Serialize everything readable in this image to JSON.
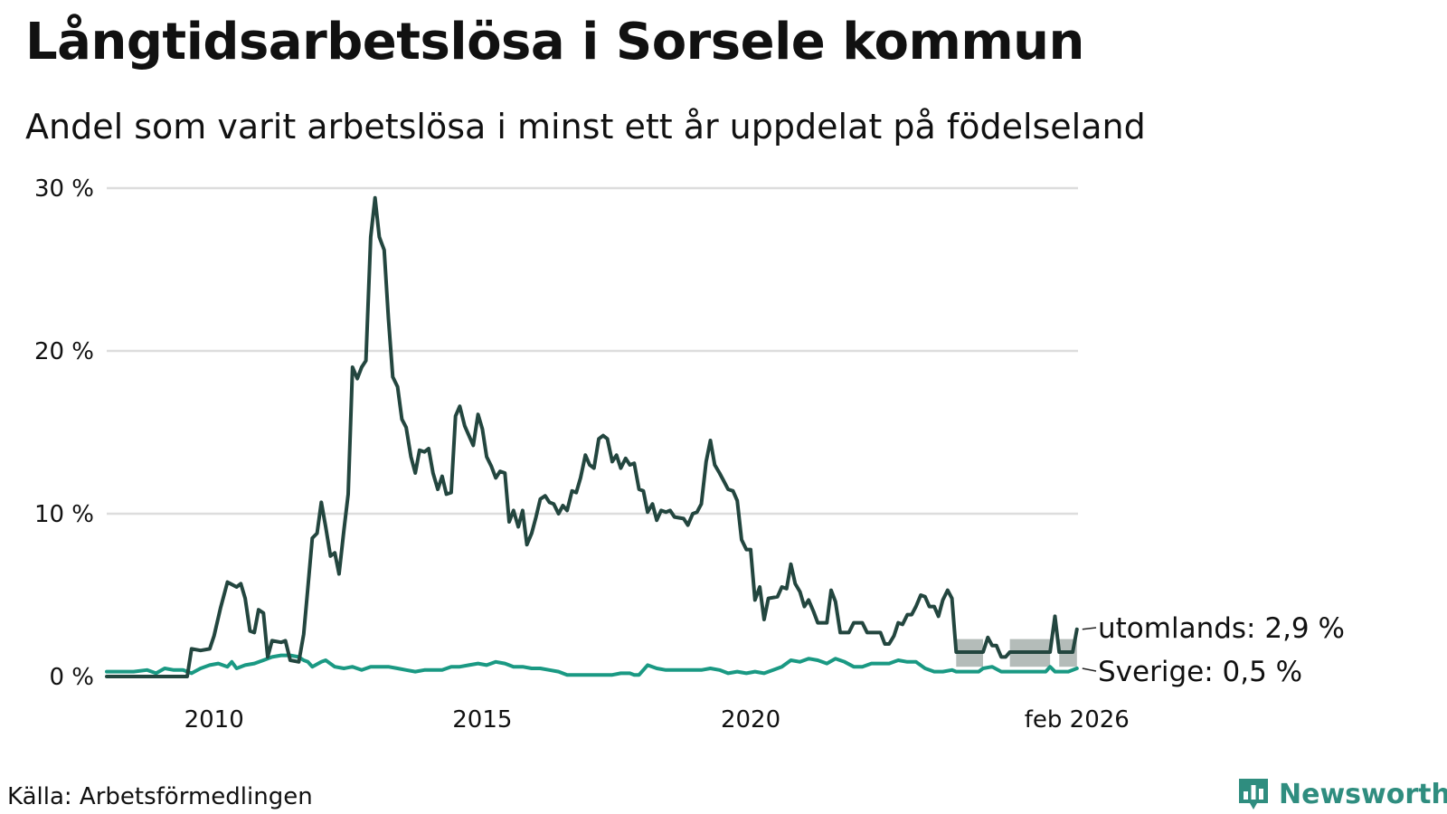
{
  "title": "Långtidsarbetslösa i Sorsele kommun",
  "subtitle": "Andel som varit arbetslösa i minst ett år uppdelat på födelseland",
  "source": "Källa: Arbetsförmedlingen",
  "brand": "Newsworthy",
  "colors": {
    "utomlands": "#23463f",
    "sverige": "#1a9983",
    "band": "#b4bcb9",
    "grid": "#dddddd",
    "brand": "#2f8d7f"
  },
  "chart_data": {
    "type": "line",
    "title": "Långtidsarbetslösa i Sorsele kommun",
    "xlabel": "",
    "ylabel": "",
    "xlim": [
      2008.0,
      2026.1
    ],
    "ylim": [
      0,
      30
    ],
    "grid": true,
    "y_ticks": [
      {
        "value": 0,
        "label": "0 %"
      },
      {
        "value": 10,
        "label": "10 %"
      },
      {
        "value": 20,
        "label": "20 %"
      },
      {
        "value": 30,
        "label": "30 %"
      }
    ],
    "x_ticks": [
      {
        "value": 2010,
        "label": "2010"
      },
      {
        "value": 2015,
        "label": "2015"
      },
      {
        "value": 2020,
        "label": "2020"
      },
      {
        "value": 2026.08,
        "label": "feb 2026"
      }
    ],
    "series": [
      {
        "name": "utomlands",
        "end_label": "utomlands: 2,9 %",
        "points": [
          [
            2008.0,
            0
          ],
          [
            2009.5,
            0
          ],
          [
            2009.58,
            1.7
          ],
          [
            2009.75,
            1.6
          ],
          [
            2009.92,
            1.7
          ],
          [
            2010.0,
            2.5
          ],
          [
            2010.12,
            4.2
          ],
          [
            2010.25,
            5.8
          ],
          [
            2010.42,
            5.5
          ],
          [
            2010.5,
            5.7
          ],
          [
            2010.58,
            4.8
          ],
          [
            2010.67,
            2.8
          ],
          [
            2010.75,
            2.7
          ],
          [
            2010.83,
            4.1
          ],
          [
            2010.92,
            3.9
          ],
          [
            2011.0,
            1.2
          ],
          [
            2011.08,
            2.2
          ],
          [
            2011.25,
            2.1
          ],
          [
            2011.33,
            2.2
          ],
          [
            2011.42,
            1.0
          ],
          [
            2011.58,
            0.9
          ],
          [
            2011.67,
            2.6
          ],
          [
            2011.75,
            5.5
          ],
          [
            2011.83,
            8.5
          ],
          [
            2011.92,
            8.8
          ],
          [
            2012.0,
            10.7
          ],
          [
            2012.08,
            9.2
          ],
          [
            2012.17,
            7.4
          ],
          [
            2012.25,
            7.6
          ],
          [
            2012.33,
            6.3
          ],
          [
            2012.42,
            9.0
          ],
          [
            2012.5,
            11.2
          ],
          [
            2012.58,
            19.0
          ],
          [
            2012.67,
            18.3
          ],
          [
            2012.75,
            19.0
          ],
          [
            2012.83,
            19.4
          ],
          [
            2012.92,
            27.0
          ],
          [
            2013.0,
            29.4
          ],
          [
            2013.08,
            27.0
          ],
          [
            2013.17,
            26.2
          ],
          [
            2013.25,
            22.0
          ],
          [
            2013.33,
            18.4
          ],
          [
            2013.42,
            17.8
          ],
          [
            2013.5,
            15.8
          ],
          [
            2013.58,
            15.3
          ],
          [
            2013.67,
            13.5
          ],
          [
            2013.75,
            12.5
          ],
          [
            2013.83,
            13.9
          ],
          [
            2013.92,
            13.8
          ],
          [
            2014.0,
            14.0
          ],
          [
            2014.08,
            12.5
          ],
          [
            2014.17,
            11.5
          ],
          [
            2014.25,
            12.3
          ],
          [
            2014.33,
            11.2
          ],
          [
            2014.42,
            11.3
          ],
          [
            2014.5,
            16.0
          ],
          [
            2014.58,
            16.6
          ],
          [
            2014.67,
            15.4
          ],
          [
            2014.75,
            14.8
          ],
          [
            2014.83,
            14.2
          ],
          [
            2014.92,
            16.1
          ],
          [
            2015.0,
            15.2
          ],
          [
            2015.08,
            13.5
          ],
          [
            2015.17,
            12.9
          ],
          [
            2015.25,
            12.2
          ],
          [
            2015.33,
            12.6
          ],
          [
            2015.42,
            12.5
          ],
          [
            2015.5,
            9.5
          ],
          [
            2015.58,
            10.2
          ],
          [
            2015.67,
            9.2
          ],
          [
            2015.75,
            10.2
          ],
          [
            2015.83,
            8.1
          ],
          [
            2015.92,
            8.8
          ],
          [
            2016.0,
            9.8
          ],
          [
            2016.08,
            10.9
          ],
          [
            2016.17,
            11.1
          ],
          [
            2016.25,
            10.7
          ],
          [
            2016.33,
            10.6
          ],
          [
            2016.42,
            10.0
          ],
          [
            2016.5,
            10.5
          ],
          [
            2016.58,
            10.2
          ],
          [
            2016.67,
            11.4
          ],
          [
            2016.75,
            11.3
          ],
          [
            2016.83,
            12.2
          ],
          [
            2016.92,
            13.6
          ],
          [
            2017.0,
            13.0
          ],
          [
            2017.08,
            12.8
          ],
          [
            2017.17,
            14.6
          ],
          [
            2017.25,
            14.8
          ],
          [
            2017.33,
            14.6
          ],
          [
            2017.42,
            13.2
          ],
          [
            2017.5,
            13.6
          ],
          [
            2017.58,
            12.8
          ],
          [
            2017.67,
            13.4
          ],
          [
            2017.75,
            13.0
          ],
          [
            2017.83,
            13.1
          ],
          [
            2017.92,
            11.5
          ],
          [
            2018.0,
            11.4
          ],
          [
            2018.08,
            10.1
          ],
          [
            2018.17,
            10.6
          ],
          [
            2018.25,
            9.6
          ],
          [
            2018.33,
            10.2
          ],
          [
            2018.42,
            10.1
          ],
          [
            2018.5,
            10.2
          ],
          [
            2018.58,
            9.8
          ],
          [
            2018.75,
            9.7
          ],
          [
            2018.83,
            9.3
          ],
          [
            2018.92,
            10.0
          ],
          [
            2019.0,
            10.1
          ],
          [
            2019.08,
            10.6
          ],
          [
            2019.17,
            13.2
          ],
          [
            2019.25,
            14.5
          ],
          [
            2019.33,
            13.0
          ],
          [
            2019.42,
            12.5
          ],
          [
            2019.5,
            12.0
          ],
          [
            2019.58,
            11.5
          ],
          [
            2019.67,
            11.4
          ],
          [
            2019.75,
            10.8
          ],
          [
            2019.83,
            8.4
          ],
          [
            2019.92,
            7.8
          ],
          [
            2020.0,
            7.8
          ],
          [
            2020.08,
            4.7
          ],
          [
            2020.17,
            5.5
          ],
          [
            2020.25,
            3.5
          ],
          [
            2020.33,
            4.8
          ],
          [
            2020.5,
            4.9
          ],
          [
            2020.58,
            5.5
          ],
          [
            2020.67,
            5.4
          ],
          [
            2020.75,
            6.9
          ],
          [
            2020.83,
            5.7
          ],
          [
            2020.92,
            5.2
          ],
          [
            2021.0,
            4.3
          ],
          [
            2021.08,
            4.7
          ],
          [
            2021.17,
            4.0
          ],
          [
            2021.25,
            3.3
          ],
          [
            2021.42,
            3.3
          ],
          [
            2021.5,
            5.3
          ],
          [
            2021.58,
            4.6
          ],
          [
            2021.67,
            2.7
          ],
          [
            2021.83,
            2.7
          ],
          [
            2021.92,
            3.3
          ],
          [
            2022.08,
            3.3
          ],
          [
            2022.17,
            2.7
          ],
          [
            2022.42,
            2.7
          ],
          [
            2022.5,
            2.0
          ],
          [
            2022.58,
            2.0
          ],
          [
            2022.67,
            2.5
          ],
          [
            2022.75,
            3.3
          ],
          [
            2022.83,
            3.2
          ],
          [
            2022.92,
            3.8
          ],
          [
            2023.0,
            3.8
          ],
          [
            2023.08,
            4.3
          ],
          [
            2023.17,
            5.0
          ],
          [
            2023.25,
            4.9
          ],
          [
            2023.33,
            4.3
          ],
          [
            2023.42,
            4.3
          ],
          [
            2023.5,
            3.7
          ],
          [
            2023.58,
            4.7
          ],
          [
            2023.67,
            5.3
          ],
          [
            2023.75,
            4.8
          ],
          [
            2023.83,
            1.5
          ],
          [
            2024.33,
            1.5
          ],
          [
            2024.42,
            2.4
          ],
          [
            2024.5,
            1.9
          ],
          [
            2024.58,
            1.9
          ],
          [
            2024.67,
            1.2
          ],
          [
            2024.75,
            1.2
          ],
          [
            2024.83,
            1.5
          ],
          [
            2025.58,
            1.5
          ],
          [
            2025.67,
            3.7
          ],
          [
            2025.75,
            1.5
          ],
          [
            2026.0,
            1.5
          ],
          [
            2026.08,
            2.9
          ]
        ],
        "uncertainty_band": [
          {
            "x_start": 2023.83,
            "x_end": 2024.33,
            "low": 0.6,
            "high": 2.3
          },
          {
            "x_start": 2024.83,
            "x_end": 2025.58,
            "low": 0.6,
            "high": 2.3
          },
          {
            "x_start": 2025.75,
            "x_end": 2026.08,
            "low": 0.6,
            "high": 2.3
          }
        ]
      },
      {
        "name": "Sverige",
        "end_label": "Sverige: 0,5 %",
        "points": [
          [
            2008.0,
            0.3
          ],
          [
            2008.5,
            0.3
          ],
          [
            2008.75,
            0.4
          ],
          [
            2008.92,
            0.2
          ],
          [
            2009.08,
            0.5
          ],
          [
            2009.25,
            0.4
          ],
          [
            2009.42,
            0.4
          ],
          [
            2009.58,
            0.2
          ],
          [
            2009.75,
            0.5
          ],
          [
            2009.92,
            0.7
          ],
          [
            2010.08,
            0.8
          ],
          [
            2010.25,
            0.6
          ],
          [
            2010.33,
            0.9
          ],
          [
            2010.42,
            0.5
          ],
          [
            2010.58,
            0.7
          ],
          [
            2010.75,
            0.8
          ],
          [
            2010.92,
            1.0
          ],
          [
            2011.08,
            1.2
          ],
          [
            2011.25,
            1.3
          ],
          [
            2011.42,
            1.3
          ],
          [
            2011.58,
            1.2
          ],
          [
            2011.67,
            1.0
          ],
          [
            2011.75,
            0.9
          ],
          [
            2011.83,
            0.6
          ],
          [
            2012.0,
            0.9
          ],
          [
            2012.08,
            1.0
          ],
          [
            2012.25,
            0.6
          ],
          [
            2012.42,
            0.5
          ],
          [
            2012.58,
            0.6
          ],
          [
            2012.75,
            0.4
          ],
          [
            2012.92,
            0.6
          ],
          [
            2013.08,
            0.6
          ],
          [
            2013.25,
            0.6
          ],
          [
            2013.42,
            0.5
          ],
          [
            2013.58,
            0.4
          ],
          [
            2013.75,
            0.3
          ],
          [
            2013.92,
            0.4
          ],
          [
            2014.08,
            0.4
          ],
          [
            2014.25,
            0.4
          ],
          [
            2014.42,
            0.6
          ],
          [
            2014.58,
            0.6
          ],
          [
            2014.75,
            0.7
          ],
          [
            2014.92,
            0.8
          ],
          [
            2015.08,
            0.7
          ],
          [
            2015.25,
            0.9
          ],
          [
            2015.42,
            0.8
          ],
          [
            2015.58,
            0.6
          ],
          [
            2015.75,
            0.6
          ],
          [
            2015.92,
            0.5
          ],
          [
            2016.08,
            0.5
          ],
          [
            2016.25,
            0.4
          ],
          [
            2016.42,
            0.3
          ],
          [
            2016.58,
            0.1
          ],
          [
            2016.75,
            0.1
          ],
          [
            2016.92,
            0.1
          ],
          [
            2017.08,
            0.1
          ],
          [
            2017.25,
            0.1
          ],
          [
            2017.42,
            0.1
          ],
          [
            2017.58,
            0.2
          ],
          [
            2017.75,
            0.2
          ],
          [
            2017.83,
            0.1
          ],
          [
            2017.92,
            0.1
          ],
          [
            2018.08,
            0.7
          ],
          [
            2018.25,
            0.5
          ],
          [
            2018.42,
            0.4
          ],
          [
            2018.58,
            0.4
          ],
          [
            2018.75,
            0.4
          ],
          [
            2018.92,
            0.4
          ],
          [
            2019.08,
            0.4
          ],
          [
            2019.25,
            0.5
          ],
          [
            2019.42,
            0.4
          ],
          [
            2019.58,
            0.2
          ],
          [
            2019.75,
            0.3
          ],
          [
            2019.92,
            0.2
          ],
          [
            2020.08,
            0.3
          ],
          [
            2020.25,
            0.2
          ],
          [
            2020.42,
            0.4
          ],
          [
            2020.58,
            0.6
          ],
          [
            2020.75,
            1.0
          ],
          [
            2020.92,
            0.9
          ],
          [
            2021.08,
            1.1
          ],
          [
            2021.25,
            1.0
          ],
          [
            2021.42,
            0.8
          ],
          [
            2021.58,
            1.1
          ],
          [
            2021.75,
            0.9
          ],
          [
            2021.92,
            0.6
          ],
          [
            2022.08,
            0.6
          ],
          [
            2022.25,
            0.8
          ],
          [
            2022.42,
            0.8
          ],
          [
            2022.58,
            0.8
          ],
          [
            2022.75,
            1.0
          ],
          [
            2022.92,
            0.9
          ],
          [
            2023.08,
            0.9
          ],
          [
            2023.25,
            0.5
          ],
          [
            2023.42,
            0.3
          ],
          [
            2023.58,
            0.3
          ],
          [
            2023.75,
            0.4
          ],
          [
            2023.83,
            0.3
          ],
          [
            2024.25,
            0.3
          ],
          [
            2024.33,
            0.5
          ],
          [
            2024.5,
            0.6
          ],
          [
            2024.67,
            0.3
          ],
          [
            2025.5,
            0.3
          ],
          [
            2025.58,
            0.6
          ],
          [
            2025.67,
            0.3
          ],
          [
            2025.92,
            0.3
          ],
          [
            2026.08,
            0.5
          ]
        ]
      }
    ]
  }
}
